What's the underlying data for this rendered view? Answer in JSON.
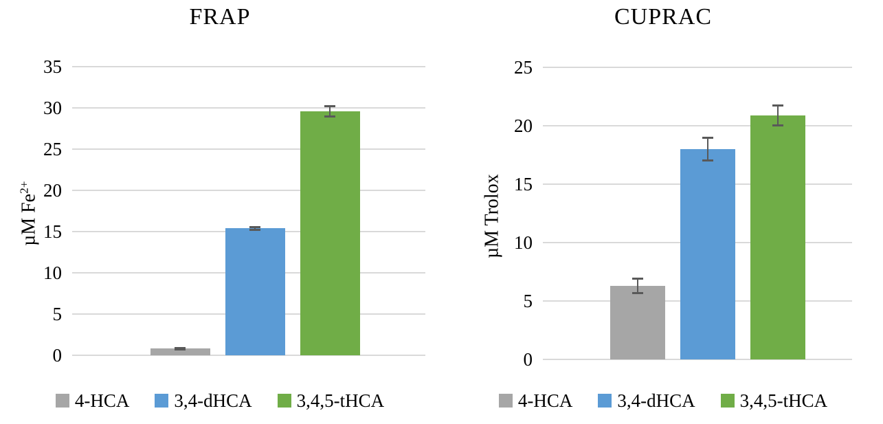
{
  "figure": {
    "background": "#ffffff"
  },
  "colors": {
    "bar_gray": "#A6A6A6",
    "bar_blue": "#5B9BD5",
    "bar_green": "#70AD47",
    "error_bar": "#595959",
    "gridline": "#D9D9D9",
    "text": "#000000"
  },
  "chart_data": [
    {
      "type": "bar",
      "title": "FRAP",
      "ylabel": "µM Fe",
      "ylabel_superscript": "2+",
      "xlabel": "",
      "categories": [
        "4-HCA",
        "3,4-dHCA",
        "3,4,5-tHCA"
      ],
      "values": [
        0.8,
        15.4,
        29.6
      ],
      "errors": [
        0.1,
        0.15,
        0.6
      ],
      "bar_colors": [
        "#A6A6A6",
        "#5B9BD5",
        "#70AD47"
      ],
      "ylim": [
        0,
        35
      ],
      "ytick_step": 5,
      "yticks": [
        0,
        5,
        10,
        15,
        20,
        25,
        30,
        35
      ],
      "grid": true,
      "legend_position": "bottom",
      "legend": [
        "4-HCA",
        "3,4-dHCA",
        "3,4,5-tHCA"
      ]
    },
    {
      "type": "bar",
      "title": "CUPRAC",
      "ylabel": "µM Trolox",
      "ylabel_superscript": "",
      "xlabel": "",
      "categories": [
        "4-HCA",
        "3,4-dHCA",
        "3,4,5-tHCA"
      ],
      "values": [
        6.3,
        18.0,
        20.9
      ],
      "errors": [
        0.6,
        0.95,
        0.85
      ],
      "bar_colors": [
        "#A6A6A6",
        "#5B9BD5",
        "#70AD47"
      ],
      "ylim": [
        0,
        25
      ],
      "ytick_step": 5,
      "yticks": [
        0,
        5,
        10,
        15,
        20,
        25
      ],
      "grid": true,
      "legend_position": "bottom",
      "legend": [
        "4-HCA",
        "3,4-dHCA",
        "3,4,5-tHCA"
      ]
    }
  ]
}
